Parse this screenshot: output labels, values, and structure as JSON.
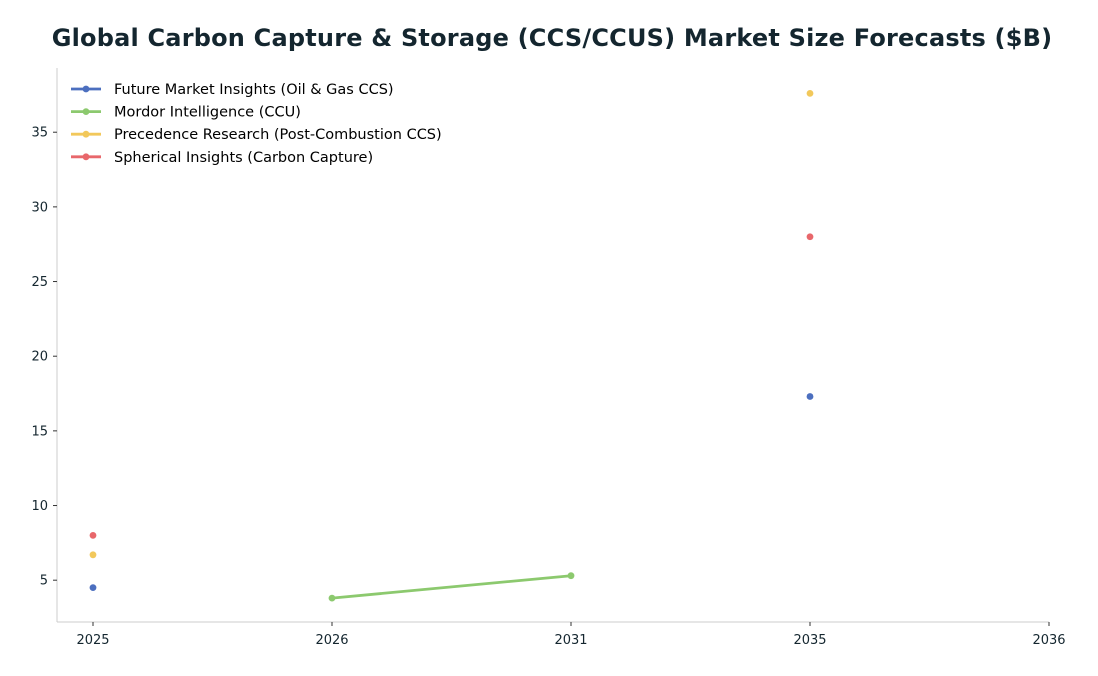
{
  "chart_data": {
    "type": "line",
    "title": "Global Carbon Capture & Storage (CCS/CCUS) Market Size Forecasts ($B)",
    "xlabel": "",
    "ylabel": "",
    "categories": [
      "2025",
      "2026",
      "2031",
      "2035",
      "2036"
    ],
    "ylim": [
      2.2,
      39.3
    ],
    "yticks": [
      5,
      10,
      15,
      20,
      25,
      30,
      35
    ],
    "grid": false,
    "legend_position": "top-left",
    "series": [
      {
        "name": "Future Market Insights (Oil & Gas CCS)",
        "color": "#4c6fbf",
        "points": [
          {
            "x": "2025",
            "y": 4.5
          },
          {
            "x": "2035",
            "y": 17.3
          }
        ]
      },
      {
        "name": "Mordor Intelligence (CCU)",
        "color": "#8cc96e",
        "points": [
          {
            "x": "2026",
            "y": 3.8
          },
          {
            "x": "2031",
            "y": 5.3
          }
        ]
      },
      {
        "name": "Precedence Research (Post-Combustion CCS)",
        "color": "#f2c85b",
        "points": [
          {
            "x": "2025",
            "y": 6.7
          },
          {
            "x": "2035",
            "y": 37.6
          }
        ]
      },
      {
        "name": "Spherical Insights (Carbon Capture)",
        "color": "#e8676b",
        "points": [
          {
            "x": "2025",
            "y": 8.0
          },
          {
            "x": "2035",
            "y": 28.0
          }
        ]
      }
    ]
  }
}
